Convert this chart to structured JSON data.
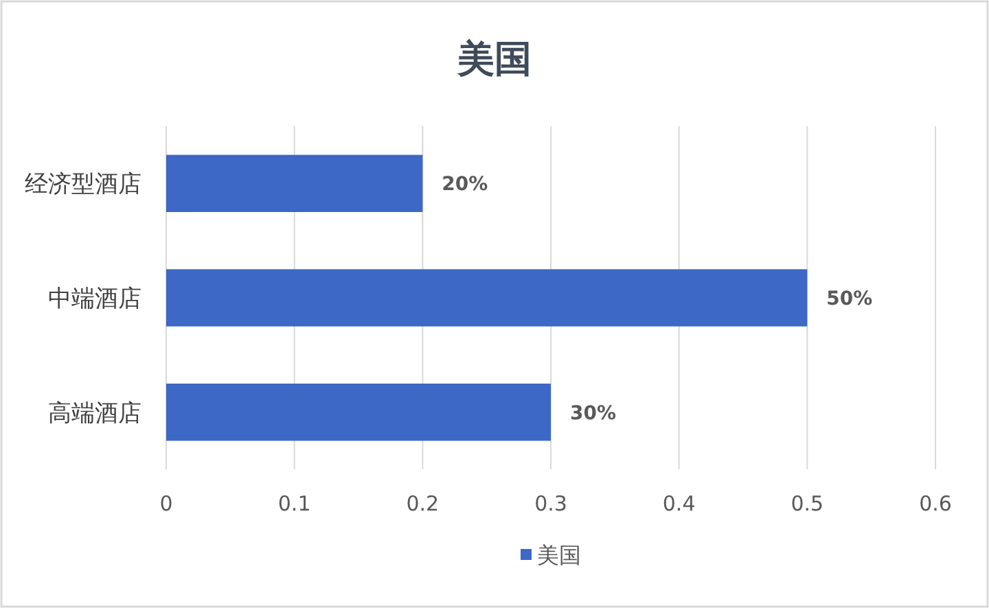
{
  "chart_data": {
    "type": "bar",
    "title": "美国",
    "orientation": "horizontal",
    "categories": [
      "经济型酒店",
      "中端酒店",
      "高端酒店"
    ],
    "series": [
      {
        "name": "美国",
        "color": "#3d68c5",
        "values": [
          0.2,
          0.5,
          0.3
        ],
        "value_labels": [
          "20%",
          "50%",
          "30%"
        ]
      }
    ],
    "xlim": [
      0,
      0.6
    ],
    "xticks": [
      0,
      0.1,
      0.2,
      0.3,
      0.4,
      0.5,
      0.6
    ],
    "grid": "x",
    "legend": "bottom"
  }
}
